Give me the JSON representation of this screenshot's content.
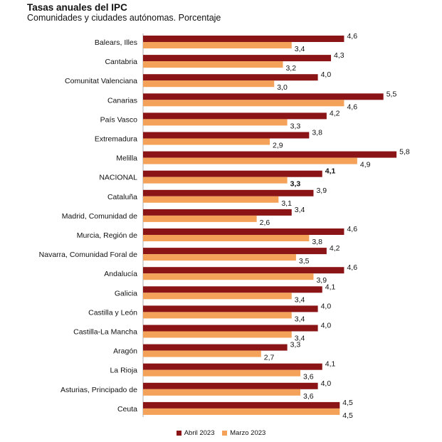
{
  "chart_data": {
    "type": "bar",
    "orientation": "horizontal",
    "title": "Tasas anuales del IPC",
    "subtitle": "Comunidades y ciudades autónomas. Porcentaje",
    "xlabel": "",
    "ylabel": "",
    "xlim": [
      0,
      6
    ],
    "grid": false,
    "legend_position": "bottom",
    "categories": [
      "Balears, Illes",
      "Cantabria",
      "Comunitat Valenciana",
      "Canarias",
      "País Vasco",
      "Extremadura",
      "Melilla",
      "NACIONAL",
      "Cataluña",
      "Madrid, Comunidad de",
      "Murcia, Región de",
      "Navarra, Comunidad Foral de",
      "Andalucía",
      "Galicia",
      "Castilla y León",
      "Castilla-La Mancha",
      "Aragón",
      "La Rioja",
      "Asturias, Principado de",
      "Ceuta"
    ],
    "series": [
      {
        "name": "Abril 2023",
        "color": "#8b1516",
        "values": [
          4.6,
          4.3,
          4.0,
          5.5,
          4.2,
          3.8,
          5.8,
          4.1,
          3.9,
          3.4,
          4.6,
          4.2,
          4.6,
          4.1,
          4.0,
          4.0,
          3.3,
          4.1,
          4.0,
          4.5
        ],
        "labels": [
          "4,6",
          "4,3",
          "4,0",
          "5,5",
          "4,2",
          "3,8",
          "5,8",
          "4,1",
          "3,9",
          "3,4",
          "4,6",
          "4,2",
          "4,6",
          "4,1",
          "4,0",
          "4,0",
          "3,3",
          "4,1",
          "4,0",
          "4,5"
        ]
      },
      {
        "name": "Marzo 2023",
        "color": "#f4a259",
        "values": [
          3.4,
          3.2,
          3.0,
          4.6,
          3.3,
          2.9,
          4.9,
          3.3,
          3.1,
          2.6,
          3.8,
          3.5,
          3.9,
          3.4,
          3.4,
          3.4,
          2.7,
          3.6,
          3.6,
          4.5
        ],
        "labels": [
          "3,4",
          "3,2",
          "3,0",
          "4,6",
          "3,3",
          "2,9",
          "4,9",
          "3,3",
          "3,1",
          "2,6",
          "3,8",
          "3,5",
          "3,9",
          "3,4",
          "3,4",
          "3,4",
          "2,7",
          "3,6",
          "3,6",
          "4,5"
        ]
      }
    ],
    "highlight_category": "NACIONAL"
  }
}
